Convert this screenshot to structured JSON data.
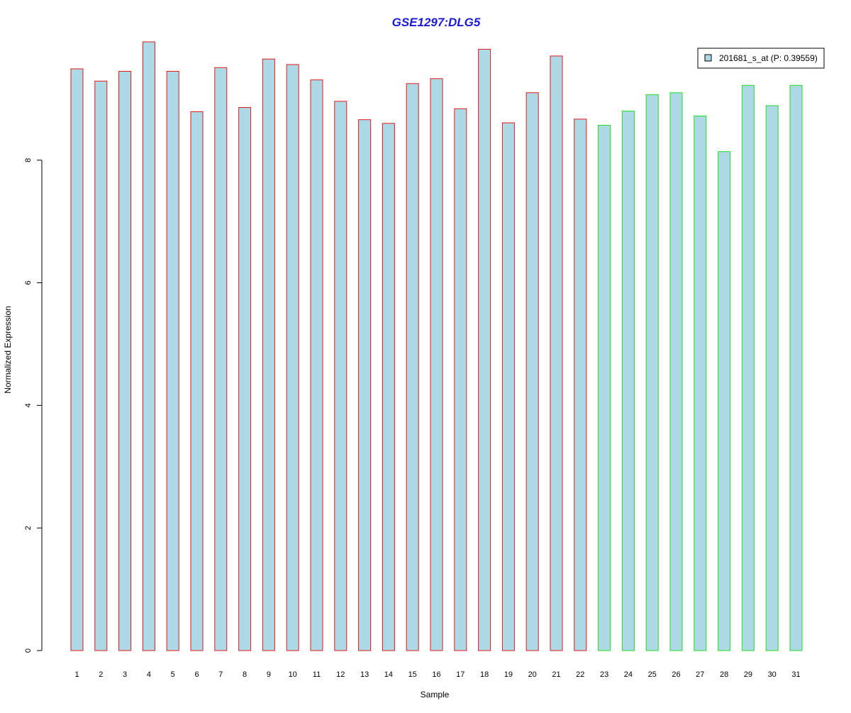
{
  "chart_data": {
    "type": "bar",
    "title": "GSE1297:DLG5",
    "xlabel": "Sample",
    "ylabel": "Normalized Expression",
    "categories": [
      "1",
      "2",
      "3",
      "4",
      "5",
      "6",
      "7",
      "8",
      "9",
      "10",
      "11",
      "12",
      "13",
      "14",
      "15",
      "16",
      "17",
      "18",
      "19",
      "20",
      "21",
      "22",
      "23",
      "24",
      "25",
      "26",
      "27",
      "28",
      "29",
      "30",
      "31"
    ],
    "values": [
      9.49,
      9.29,
      9.45,
      9.93,
      9.45,
      8.79,
      9.51,
      8.86,
      9.65,
      9.56,
      9.31,
      8.96,
      8.66,
      8.6,
      9.25,
      9.33,
      8.84,
      9.81,
      8.61,
      9.1,
      9.7,
      8.67,
      8.57,
      8.8,
      9.07,
      9.1,
      8.72,
      8.14,
      9.22,
      8.89,
      9.22
    ],
    "groups": [
      1,
      1,
      1,
      1,
      1,
      1,
      1,
      1,
      1,
      1,
      1,
      1,
      1,
      1,
      1,
      1,
      1,
      1,
      1,
      1,
      1,
      1,
      2,
      2,
      2,
      2,
      2,
      2,
      2,
      2,
      2
    ],
    "group_colors": {
      "1": "#e31a1c",
      "2": "#22dd22"
    },
    "bar_fill": "#add8e6",
    "title_color": "#1a1ad6",
    "yticks": [
      0,
      2,
      4,
      6,
      8
    ],
    "ylim": [
      0,
      9.93
    ],
    "grid": false,
    "legend": {
      "position": "top-right",
      "entries": [
        {
          "label": "201681_s_at (P: 0.39559)",
          "color": "#add8e6"
        }
      ]
    }
  }
}
